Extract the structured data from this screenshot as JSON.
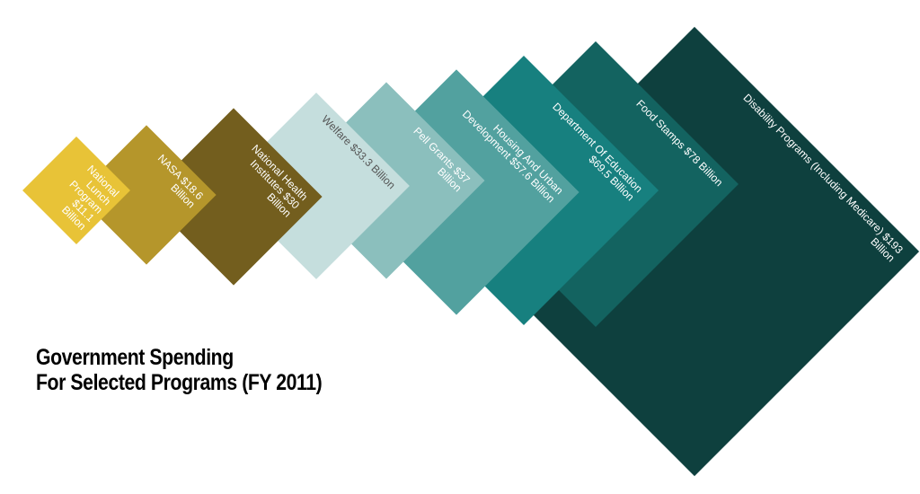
{
  "chart_data": {
    "type": "diamond",
    "title_lines": [
      "Government Spending",
      "For Selected Programs (FY 2011)"
    ],
    "categories": [
      "National Lunch Program",
      "NASA",
      "National Health Institutes",
      "Welfare",
      "Pell Grants",
      "Housing And Urban Development",
      "Department Of Education",
      "Food Stamps",
      "Disability Programs (Including Medicare)"
    ],
    "values": [
      11.1,
      18.6,
      30,
      33.3,
      37,
      57.6,
      69.5,
      78,
      193
    ],
    "value_labels": [
      "$11.1 Billion",
      "$18.6 Billion",
      "$30 Billion",
      "$33.3 Billion",
      "$37 Billion",
      "$57.6 Billion",
      "$69.5 Billion",
      "$78 Billion",
      "$193 Billion"
    ],
    "colors": [
      "#e8c337",
      "#b5962b",
      "#735e1e",
      "#c5dedd",
      "#8bbfbd",
      "#52a19f",
      "#17807f",
      "#136360",
      "#0e403e"
    ],
    "label_colors": [
      "#ffffff",
      "#ffffff",
      "#ffffff",
      "#555555",
      "#ffffff",
      "#ffffff",
      "#ffffff",
      "#ffffff",
      "#ffffff"
    ]
  }
}
